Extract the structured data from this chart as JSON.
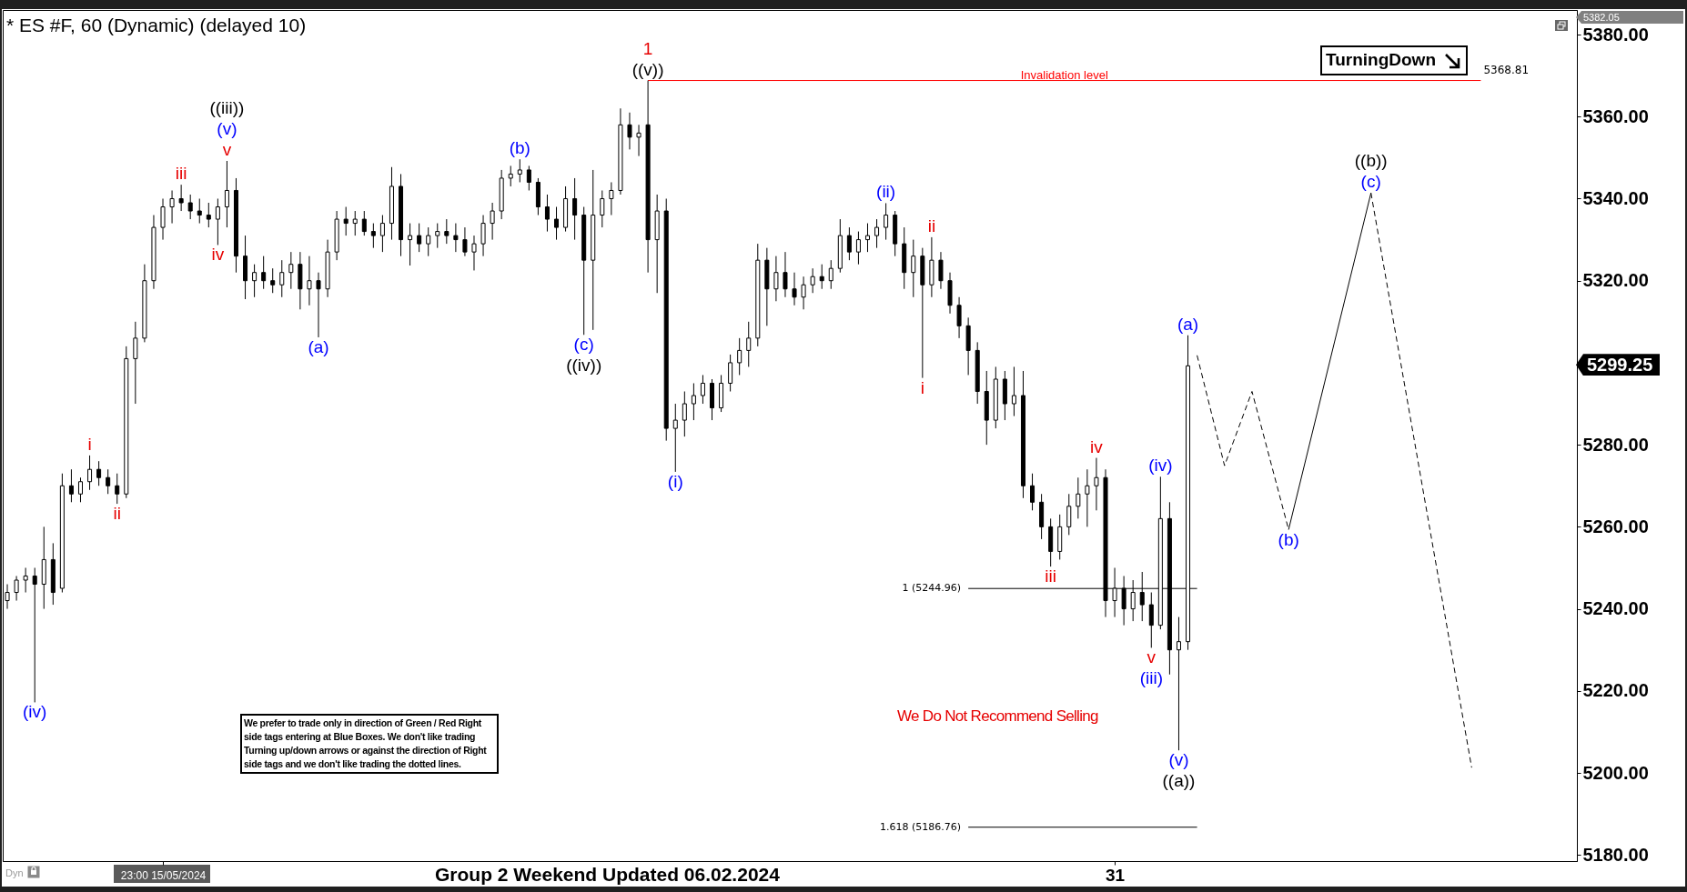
{
  "chart_data": {
    "type": "candlestick",
    "title": "* ES #F, 60 (Dynamic) (delayed 10)",
    "color": "#000000",
    "categories": [
      null,
      null,
      null,
      null,
      null,
      null,
      null,
      null,
      null,
      null,
      null,
      null,
      null,
      null,
      null,
      null,
      null,
      "23:00 15/05/2024",
      null,
      null,
      null,
      null,
      null,
      null,
      null,
      null,
      null,
      null,
      null,
      null,
      null,
      null,
      null,
      null,
      null,
      null,
      null,
      null,
      null,
      null,
      null,
      null,
      null,
      null,
      null,
      null,
      null,
      null,
      null,
      null,
      null,
      null,
      null,
      null,
      null,
      null,
      null,
      null,
      null,
      null,
      null,
      null,
      null,
      null,
      null,
      null,
      null,
      null,
      null,
      null,
      null,
      null,
      null,
      null,
      null,
      null,
      null,
      null,
      null,
      null,
      null,
      null,
      null,
      null,
      null,
      null,
      null,
      null,
      null,
      null,
      null,
      null,
      null,
      null,
      null,
      null,
      null,
      null,
      null,
      null,
      null,
      null,
      null,
      null,
      null,
      null,
      null,
      null,
      null,
      null,
      null,
      null,
      null,
      null,
      null,
      null,
      null,
      null,
      null,
      null,
      null,
      "31",
      null,
      null,
      null,
      null,
      null,
      null,
      null,
      null,
      null,
      null,
      null,
      null,
      null,
      null,
      null,
      null,
      null,
      null,
      null,
      null,
      null,
      null,
      null,
      null,
      null,
      null,
      null,
      null,
      null,
      null,
      null,
      null,
      null,
      null,
      null,
      null,
      null,
      null,
      null,
      null,
      null,
      null,
      null,
      null,
      null,
      null,
      null,
      null,
      null,
      null
    ],
    "ohlc": [
      [
        5242,
        5246,
        5240,
        5244
      ],
      [
        5244,
        5248,
        5242,
        5247
      ],
      [
        5247,
        5250,
        5244,
        5248
      ],
      [
        5248,
        5250,
        5217.2,
        5246
      ],
      [
        5246,
        5260,
        5240,
        5252
      ],
      [
        5252,
        5256,
        5241,
        5244
      ],
      [
        5245,
        5273,
        5244,
        5270
      ],
      [
        5270,
        5274,
        5266,
        5268
      ],
      [
        5268,
        5272,
        5266,
        5271
      ],
      [
        5271,
        5277.4,
        5269,
        5274
      ],
      [
        5274,
        5276,
        5270,
        5272
      ],
      [
        5272,
        5274,
        5268,
        5270
      ],
      [
        5270,
        5273,
        5265.6,
        5268
      ],
      [
        5268,
        5304,
        5267,
        5301
      ],
      [
        5301,
        5310,
        5290,
        5306
      ],
      [
        5306,
        5324,
        5305,
        5320
      ],
      [
        5320,
        5336,
        5318,
        5333
      ],
      [
        5333,
        5340,
        5330,
        5338
      ],
      [
        5338,
        5342,
        5334,
        5340
      ],
      [
        5340,
        5343.4,
        5337,
        5339
      ],
      [
        5339,
        5341,
        5335,
        5337
      ],
      [
        5337,
        5340,
        5334,
        5336
      ],
      [
        5336,
        5339,
        5333,
        5335
      ],
      [
        5335,
        5340,
        5328.7,
        5338
      ],
      [
        5338,
        5349.2,
        5333,
        5342
      ],
      [
        5342,
        5345,
        5322,
        5326
      ],
      [
        5326,
        5331,
        5315.5,
        5320
      ],
      [
        5320,
        5324,
        5316,
        5322
      ],
      [
        5322,
        5326,
        5318,
        5320
      ],
      [
        5320,
        5323,
        5317,
        5319
      ],
      [
        5319,
        5325,
        5316,
        5322
      ],
      [
        5322,
        5327,
        5318,
        5324
      ],
      [
        5324,
        5327,
        5313,
        5318
      ],
      [
        5318,
        5326,
        5314,
        5320
      ],
      [
        5320,
        5322,
        5306.2,
        5318
      ],
      [
        5318,
        5330,
        5316,
        5327
      ],
      [
        5327,
        5337,
        5325,
        5335
      ],
      [
        5335,
        5338,
        5331,
        5334
      ],
      [
        5334,
        5337,
        5331,
        5335
      ],
      [
        5335,
        5337,
        5331,
        5332
      ],
      [
        5332,
        5334,
        5328,
        5331
      ],
      [
        5331,
        5336,
        5327,
        5334
      ],
      [
        5334,
        5347.7,
        5330,
        5343
      ],
      [
        5343,
        5346,
        5326,
        5330
      ],
      [
        5330,
        5334,
        5323.7,
        5331
      ],
      [
        5331,
        5334,
        5327,
        5329
      ],
      [
        5329,
        5333,
        5326,
        5331
      ],
      [
        5331,
        5334,
        5328,
        5332
      ],
      [
        5332,
        5335,
        5329,
        5331
      ],
      [
        5331,
        5334,
        5327,
        5330
      ],
      [
        5330,
        5333,
        5326,
        5327
      ],
      [
        5327,
        5331,
        5322.5,
        5329
      ],
      [
        5329,
        5336,
        5326,
        5334
      ],
      [
        5334,
        5339,
        5330,
        5337
      ],
      [
        5337,
        5347,
        5335,
        5345
      ],
      [
        5345,
        5348,
        5343,
        5346
      ],
      [
        5346,
        5349.6,
        5344,
        5347
      ],
      [
        5347,
        5348,
        5342,
        5344
      ],
      [
        5344,
        5345,
        5336,
        5338
      ],
      [
        5338,
        5341,
        5332,
        5335
      ],
      [
        5335,
        5338,
        5330,
        5333
      ],
      [
        5333,
        5343,
        5332,
        5340
      ],
      [
        5340,
        5345,
        5330,
        5336
      ],
      [
        5336,
        5338,
        5306.8,
        5325
      ],
      [
        5325,
        5347,
        5308,
        5336
      ],
      [
        5336,
        5342,
        5333,
        5340
      ],
      [
        5340,
        5344,
        5336,
        5342
      ],
      [
        5342,
        5362,
        5341,
        5358
      ],
      [
        5358,
        5361,
        5352,
        5355
      ],
      [
        5355,
        5358,
        5350.4,
        5356
      ],
      [
        5358,
        5368.81,
        5322,
        5330
      ],
      [
        5330,
        5341,
        5317,
        5337
      ],
      [
        5337,
        5340,
        5281,
        5284
      ],
      [
        5284,
        5290,
        5273.4,
        5286
      ],
      [
        5286,
        5293,
        5282,
        5290
      ],
      [
        5290,
        5295,
        5286,
        5292
      ],
      [
        5292,
        5297,
        5290,
        5295
      ],
      [
        5295,
        5296,
        5286,
        5289
      ],
      [
        5289,
        5297,
        5288,
        5295
      ],
      [
        5295,
        5302,
        5293,
        5300
      ],
      [
        5300,
        5306,
        5297,
        5303
      ],
      [
        5303,
        5310,
        5299,
        5306
      ],
      [
        5306,
        5329,
        5304,
        5325
      ],
      [
        5325,
        5328,
        5309,
        5318
      ],
      [
        5318,
        5326,
        5315,
        5322
      ],
      [
        5322,
        5327,
        5316,
        5318
      ],
      [
        5318,
        5322,
        5314,
        5316
      ],
      [
        5316,
        5321,
        5313,
        5319
      ],
      [
        5319,
        5323,
        5317,
        5321
      ],
      [
        5321,
        5324,
        5318,
        5320
      ],
      [
        5320,
        5325,
        5318,
        5323
      ],
      [
        5323,
        5335,
        5322,
        5331
      ],
      [
        5331,
        5333,
        5325,
        5327
      ],
      [
        5327,
        5332,
        5324,
        5330
      ],
      [
        5330,
        5334,
        5327,
        5331
      ],
      [
        5331,
        5335,
        5328,
        5333
      ],
      [
        5333,
        5338.9,
        5330,
        5336
      ],
      [
        5336,
        5337,
        5326,
        5329
      ],
      [
        5329,
        5333,
        5318,
        5322
      ],
      [
        5322,
        5330,
        5316,
        5326
      ],
      [
        5326,
        5328,
        5296.3,
        5319
      ],
      [
        5319,
        5330.6,
        5316,
        5325
      ],
      [
        5325,
        5327,
        5318,
        5320
      ],
      [
        5320,
        5322,
        5312,
        5314
      ],
      [
        5314,
        5316,
        5306,
        5309
      ],
      [
        5309,
        5311,
        5297,
        5303
      ],
      [
        5303,
        5305,
        5290,
        5293
      ],
      [
        5293,
        5298,
        5280,
        5286
      ],
      [
        5286,
        5299,
        5284,
        5296
      ],
      [
        5296,
        5298,
        5286,
        5290
      ],
      [
        5290,
        5299,
        5287,
        5292
      ],
      [
        5292,
        5298,
        5267,
        5270
      ],
      [
        5270,
        5273,
        5264,
        5266
      ],
      [
        5266,
        5268,
        5257,
        5260
      ],
      [
        5260,
        5262,
        5250.3,
        5254
      ],
      [
        5254,
        5263,
        5252,
        5260
      ],
      [
        5260,
        5268,
        5258,
        5265
      ],
      [
        5265,
        5272,
        5262,
        5268
      ],
      [
        5268,
        5274,
        5260,
        5270
      ],
      [
        5270,
        5276.8,
        5264,
        5272
      ],
      [
        5272,
        5274,
        5238,
        5242
      ],
      [
        5242,
        5250,
        5238,
        5245
      ],
      [
        5245,
        5248,
        5236,
        5240
      ],
      [
        5240,
        5247,
        5237,
        5244
      ],
      [
        5244,
        5249,
        5237,
        5241
      ],
      [
        5241,
        5244,
        5230.5,
        5236
      ],
      [
        5236,
        5272.2,
        5235,
        5262
      ],
      [
        5262,
        5266,
        5224,
        5230
      ],
      [
        5230,
        5238,
        5205.5,
        5232
      ],
      [
        5232,
        5306.7,
        5230,
        5299.25
      ],
      null,
      null,
      null,
      null,
      null,
      null,
      null,
      null,
      null,
      null,
      null,
      null,
      null,
      null,
      null,
      null,
      null,
      null,
      null,
      null,
      null,
      null,
      null,
      null,
      null,
      null,
      null,
      null,
      null,
      null,
      null,
      null,
      null,
      null,
      null,
      null,
      null,
      null,
      null,
      null,
      null,
      null
    ],
    "series": [
      {
        "type": "line",
        "name": "Invalidation level",
        "color": "#ff0000",
        "values": [
          null,
          null,
          null,
          null,
          null,
          null,
          null,
          null,
          null,
          null,
          null,
          null,
          null,
          null,
          null,
          null,
          null,
          null,
          null,
          null,
          null,
          null,
          null,
          null,
          null,
          null,
          null,
          null,
          null,
          null,
          null,
          null,
          null,
          null,
          null,
          null,
          null,
          null,
          null,
          null,
          null,
          null,
          null,
          null,
          null,
          null,
          null,
          null,
          null,
          null,
          null,
          null,
          null,
          null,
          null,
          null,
          null,
          null,
          null,
          null,
          null,
          null,
          null,
          null,
          null,
          null,
          null,
          null,
          null,
          null,
          5368.81,
          null,
          null,
          null,
          null,
          null,
          null,
          null,
          null,
          null,
          null,
          null,
          null,
          null,
          null,
          null,
          null,
          null,
          null,
          null,
          null,
          null,
          null,
          null,
          null,
          null,
          null,
          null,
          null,
          null,
          null,
          null,
          null,
          null,
          null,
          null,
          null,
          null,
          null,
          null,
          null,
          null,
          null,
          null,
          null,
          null,
          null,
          null,
          null,
          null,
          null,
          null,
          null,
          null,
          null,
          null,
          null,
          null,
          null,
          null,
          null,
          null,
          null,
          null,
          null,
          null,
          null,
          null,
          null,
          null,
          null,
          null,
          null,
          null,
          null,
          null,
          null,
          null,
          null,
          null,
          null,
          null,
          null,
          null,
          null,
          null,
          null,
          null,
          null,
          null,
          null,
          5368.81,
          null,
          null,
          null,
          null,
          null,
          null,
          null,
          null,
          null,
          null
        ],
        "value_labels": [
          null,
          null,
          null,
          null,
          null,
          null,
          null,
          null,
          null,
          null,
          null,
          null,
          null,
          null,
          null,
          null,
          null,
          null,
          null,
          null,
          null,
          null,
          null,
          null,
          null,
          null,
          null,
          null,
          null,
          null,
          null,
          null,
          null,
          null,
          null,
          null,
          null,
          null,
          null,
          null,
          null,
          null,
          null,
          null,
          null,
          null,
          null,
          null,
          null,
          null,
          null,
          null,
          null,
          null,
          null,
          null,
          null,
          null,
          null,
          null,
          null,
          null,
          null,
          null,
          null,
          null,
          null,
          null,
          null,
          null,
          null,
          null,
          null,
          null,
          null,
          null,
          null,
          null,
          null,
          null,
          null,
          null,
          null,
          null,
          null,
          null,
          null,
          null,
          null,
          null,
          null,
          null,
          null,
          null,
          null,
          null,
          null,
          null,
          null,
          null,
          null,
          null,
          null,
          null,
          null,
          null,
          null,
          null,
          null,
          null,
          null,
          null,
          null,
          null,
          null,
          null,
          null,
          null,
          null,
          null,
          null,
          null,
          null,
          null,
          null,
          null,
          null,
          null,
          null,
          null,
          null,
          null,
          null,
          null,
          null,
          null,
          null,
          null,
          null,
          null,
          null,
          null,
          null,
          null,
          null,
          null,
          null,
          null,
          null,
          null,
          null,
          null,
          null,
          null,
          null,
          null,
          null,
          null,
          null,
          null,
          null,
          "5368.81",
          null,
          null,
          null,
          null,
          null,
          null,
          null,
          null,
          null,
          null
        ]
      },
      {
        "type": "line",
        "name": "1 (5244.96)",
        "color": "#000000",
        "values": [
          null,
          null,
          null,
          null,
          null,
          null,
          null,
          null,
          null,
          null,
          null,
          null,
          null,
          null,
          null,
          null,
          null,
          null,
          null,
          null,
          null,
          null,
          null,
          null,
          null,
          null,
          null,
          null,
          null,
          null,
          null,
          null,
          null,
          null,
          null,
          null,
          null,
          null,
          null,
          null,
          null,
          null,
          null,
          null,
          null,
          null,
          null,
          null,
          null,
          null,
          null,
          null,
          null,
          null,
          null,
          null,
          null,
          null,
          null,
          null,
          null,
          null,
          null,
          null,
          null,
          null,
          null,
          null,
          null,
          null,
          null,
          null,
          null,
          null,
          null,
          null,
          null,
          null,
          null,
          null,
          null,
          null,
          null,
          null,
          null,
          null,
          null,
          null,
          null,
          null,
          null,
          null,
          null,
          null,
          null,
          null,
          null,
          null,
          null,
          null,
          null,
          null,
          null,
          null,
          null,
          5244.96,
          null,
          null,
          null,
          null,
          null,
          null,
          null,
          null,
          null,
          null,
          null,
          null,
          null,
          null,
          null,
          null,
          null,
          null,
          null,
          null,
          null,
          null,
          null,
          null,
          5244.96,
          null,
          null,
          null,
          null,
          null,
          null,
          null,
          null,
          null,
          null,
          null,
          null,
          null,
          null,
          null,
          null,
          null,
          null,
          null,
          null,
          null,
          null,
          null,
          null,
          null,
          null,
          null,
          null,
          null,
          null,
          null,
          null,
          null,
          null,
          null,
          null,
          null,
          null,
          null,
          null,
          null
        ]
      },
      {
        "type": "line",
        "name": "1.618 (5186.76)",
        "color": "#000000",
        "values": [
          null,
          null,
          null,
          null,
          null,
          null,
          null,
          null,
          null,
          null,
          null,
          null,
          null,
          null,
          null,
          null,
          null,
          null,
          null,
          null,
          null,
          null,
          null,
          null,
          null,
          null,
          null,
          null,
          null,
          null,
          null,
          null,
          null,
          null,
          null,
          null,
          null,
          null,
          null,
          null,
          null,
          null,
          null,
          null,
          null,
          null,
          null,
          null,
          null,
          null,
          null,
          null,
          null,
          null,
          null,
          null,
          null,
          null,
          null,
          null,
          null,
          null,
          null,
          null,
          null,
          null,
          null,
          null,
          null,
          null,
          null,
          null,
          null,
          null,
          null,
          null,
          null,
          null,
          null,
          null,
          null,
          null,
          null,
          null,
          null,
          null,
          null,
          null,
          null,
          null,
          null,
          null,
          null,
          null,
          null,
          null,
          null,
          null,
          null,
          null,
          null,
          null,
          null,
          null,
          null,
          5186.76,
          null,
          null,
          null,
          null,
          null,
          null,
          null,
          null,
          null,
          null,
          null,
          null,
          null,
          null,
          null,
          null,
          null,
          null,
          null,
          null,
          null,
          null,
          null,
          null,
          5186.76,
          null,
          null,
          null,
          null,
          null,
          null,
          null,
          null,
          null,
          null,
          null,
          null,
          null,
          null,
          null,
          null,
          null,
          null,
          null,
          null,
          null,
          null,
          null,
          null,
          null,
          null,
          null,
          null,
          null,
          null,
          null,
          null,
          null,
          null,
          null,
          null,
          null,
          null,
          null,
          null,
          null
        ]
      },
      {
        "type": "line",
        "color": "#000000",
        "line_style": "dashed",
        "values": [
          null,
          null,
          null,
          null,
          null,
          null,
          null,
          null,
          null,
          null,
          null,
          null,
          null,
          null,
          null,
          null,
          null,
          null,
          null,
          null,
          null,
          null,
          null,
          null,
          null,
          null,
          null,
          null,
          null,
          null,
          null,
          null,
          null,
          null,
          null,
          null,
          null,
          null,
          null,
          null,
          null,
          null,
          null,
          null,
          null,
          null,
          null,
          null,
          null,
          null,
          null,
          null,
          null,
          null,
          null,
          null,
          null,
          null,
          null,
          null,
          null,
          null,
          null,
          null,
          null,
          null,
          null,
          null,
          null,
          null,
          null,
          null,
          null,
          null,
          null,
          null,
          null,
          null,
          null,
          null,
          null,
          null,
          null,
          null,
          null,
          null,
          null,
          null,
          null,
          null,
          null,
          null,
          null,
          null,
          null,
          null,
          null,
          null,
          null,
          null,
          null,
          null,
          null,
          null,
          null,
          null,
          null,
          null,
          null,
          null,
          null,
          null,
          null,
          null,
          null,
          null,
          null,
          null,
          null,
          null,
          null,
          null,
          null,
          null,
          null,
          null,
          null,
          null,
          null,
          null,
          5301.8,
          null,
          null,
          5274.9,
          null,
          null,
          5293,
          null,
          null,
          null,
          5259.3,
          null,
          null,
          null,
          null,
          null,
          null,
          null,
          null,
          null,
          null,
          null,
          null,
          null,
          null,
          null,
          null,
          null,
          null,
          null,
          null,
          null,
          null,
          null,
          null,
          null,
          null,
          null,
          null,
          null,
          null,
          null
        ]
      },
      {
        "type": "line",
        "color": "#000000",
        "line_style": "solid",
        "values": [
          null,
          null,
          null,
          null,
          null,
          null,
          null,
          null,
          null,
          null,
          null,
          null,
          null,
          null,
          null,
          null,
          null,
          null,
          null,
          null,
          null,
          null,
          null,
          null,
          null,
          null,
          null,
          null,
          null,
          null,
          null,
          null,
          null,
          null,
          null,
          null,
          null,
          null,
          null,
          null,
          null,
          null,
          null,
          null,
          null,
          null,
          null,
          null,
          null,
          null,
          null,
          null,
          null,
          null,
          null,
          null,
          null,
          null,
          null,
          null,
          null,
          null,
          null,
          null,
          null,
          null,
          null,
          null,
          null,
          null,
          null,
          null,
          null,
          null,
          null,
          null,
          null,
          null,
          null,
          null,
          null,
          null,
          null,
          null,
          null,
          null,
          null,
          null,
          null,
          null,
          null,
          null,
          null,
          null,
          null,
          null,
          null,
          null,
          null,
          null,
          null,
          null,
          null,
          null,
          null,
          null,
          null,
          null,
          null,
          null,
          null,
          null,
          null,
          null,
          null,
          null,
          null,
          null,
          null,
          null,
          null,
          null,
          null,
          null,
          null,
          null,
          null,
          null,
          null,
          null,
          null,
          null,
          null,
          null,
          null,
          null,
          null,
          null,
          null,
          null,
          5259.3,
          null,
          null,
          null,
          null,
          null,
          null,
          null,
          null,
          5341.4,
          null,
          null,
          null,
          null,
          null,
          null,
          null,
          null,
          null,
          null,
          null,
          null,
          null,
          null,
          null,
          null,
          null,
          null,
          null,
          null,
          null,
          null
        ]
      },
      {
        "type": "line",
        "color": "#000000",
        "line_style": "dashed",
        "values": [
          null,
          null,
          null,
          null,
          null,
          null,
          null,
          null,
          null,
          null,
          null,
          null,
          null,
          null,
          null,
          null,
          null,
          null,
          null,
          null,
          null,
          null,
          null,
          null,
          null,
          null,
          null,
          null,
          null,
          null,
          null,
          null,
          null,
          null,
          null,
          null,
          null,
          null,
          null,
          null,
          null,
          null,
          null,
          null,
          null,
          null,
          null,
          null,
          null,
          null,
          null,
          null,
          null,
          null,
          null,
          null,
          null,
          null,
          null,
          null,
          null,
          null,
          null,
          null,
          null,
          null,
          null,
          null,
          null,
          null,
          null,
          null,
          null,
          null,
          null,
          null,
          null,
          null,
          null,
          null,
          null,
          null,
          null,
          null,
          null,
          null,
          null,
          null,
          null,
          null,
          null,
          null,
          null,
          null,
          null,
          null,
          null,
          null,
          null,
          null,
          null,
          null,
          null,
          null,
          null,
          null,
          null,
          null,
          null,
          null,
          null,
          null,
          null,
          null,
          null,
          null,
          null,
          null,
          null,
          null,
          null,
          null,
          null,
          null,
          null,
          null,
          null,
          null,
          null,
          null,
          null,
          null,
          null,
          null,
          null,
          null,
          null,
          null,
          null,
          null,
          null,
          null,
          null,
          null,
          null,
          null,
          null,
          null,
          null,
          5341.4,
          null,
          null,
          null,
          null,
          null,
          null,
          null,
          null,
          null,
          null,
          5201.3,
          null,
          null,
          null,
          null,
          null,
          null,
          null,
          null,
          null,
          null,
          null
        ]
      }
    ],
    "ylim": [
      5178.5,
      5386
    ],
    "yticks": [
      {
        "value": 5180,
        "label": "5180.00"
      },
      {
        "value": 5200,
        "label": "5200.00"
      },
      {
        "value": 5220,
        "label": "5220.00"
      },
      {
        "value": 5240,
        "label": "5240.00"
      },
      {
        "value": 5260,
        "label": "5260.00"
      },
      {
        "value": 5280,
        "label": "5280.00"
      },
      {
        "value": 5320,
        "label": "5320.00"
      },
      {
        "value": 5340,
        "label": "5340.00"
      },
      {
        "value": 5360,
        "label": "5360.00"
      },
      {
        "value": 5380,
        "label": "5380.00"
      }
    ],
    "annotations": [
      {
        "text": "(iv)",
        "y": 5217.2
      },
      {
        "text": "i",
        "y": 5277.4
      },
      {
        "text": "ii",
        "y": 5265.6
      },
      {
        "text": "iii",
        "y": 5343.4
      },
      {
        "text": "iv",
        "y": 5328.7
      },
      {
        "text": "v",
        "y": 5349.2
      },
      {
        "text": "(v)",
        "y": 5349.2
      },
      {
        "text": "((iii))",
        "y": 5349.2
      },
      {
        "text": "(a)",
        "y": 5306.2
      },
      {
        "text": "(b)",
        "y": 5349.6
      },
      {
        "text": "(c)",
        "y": 5306.8
      },
      {
        "text": "((iv))",
        "y": 5306.8
      },
      {
        "text": "((v))",
        "y": 5368.81
      },
      {
        "text": "1",
        "y": 5368.81
      },
      {
        "text": "(i)",
        "y": 5273.4
      },
      {
        "text": "(ii)",
        "y": 5338.9
      },
      {
        "text": "i",
        "y": 5296.3
      },
      {
        "text": "ii",
        "y": 5330.6
      },
      {
        "text": "iii",
        "y": 5250.3
      },
      {
        "text": "iv",
        "y": 5276.8
      },
      {
        "text": "v",
        "y": 5230.5
      },
      {
        "text": "(iii)",
        "y": 5230.5
      },
      {
        "text": "(iv)",
        "y": 5272.2
      },
      {
        "text": "(v)",
        "y": 5205.5
      },
      {
        "text": "((a))",
        "y": 5205.5
      },
      {
        "text": "(a)",
        "y": 5306.7
      },
      {
        "text": "(b)",
        "y": 5259.3
      },
      {
        "text": "(c)",
        "y": 5341.4
      },
      {
        "text": "((b))",
        "y": 5341.4
      },
      "We prefer to trade only in direction of Green / Red Right side tags entering at Blue Boxes. We don't like trading Turning up/down arrows or against the direction of Right side tags and we don't like trading the dotted lines.",
      "We Do Not Recommend Selling",
      "TurningDown",
      "Group 2 Weekend Updated 06.02.2024",
      "Dyn",
      "5382.05",
      "5299.25"
    ]
  }
}
